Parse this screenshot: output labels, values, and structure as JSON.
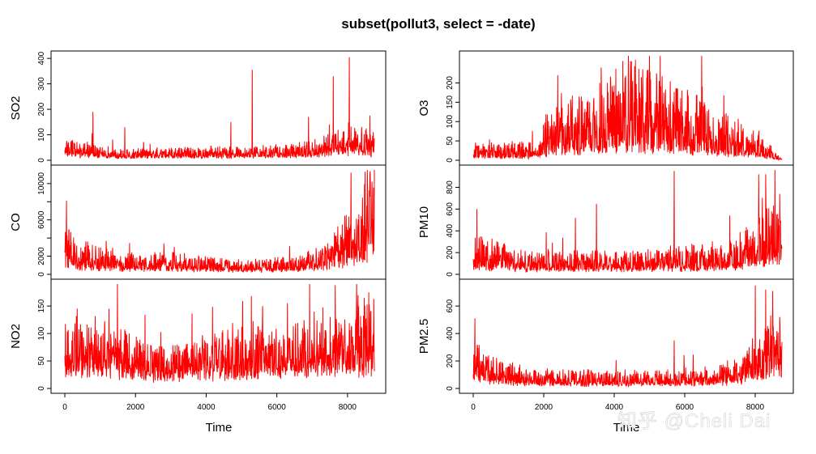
{
  "chart_data": {
    "type": "line",
    "title": "subset(pollut3, select = -date)",
    "xlabel": "Time",
    "xlim": [
      0,
      8760
    ],
    "x_ticks": [
      0,
      2000,
      4000,
      6000,
      8000
    ],
    "line_color": "#ff0000",
    "grid": false,
    "series": [
      {
        "name": "SO2",
        "column": 0,
        "ylim": [
          0,
          410
        ],
        "y_ticks": [
          0,
          100,
          200,
          300,
          400
        ],
        "y_ticks_hidden": [],
        "base": 15,
        "spread": 20,
        "trend": [
          [
            0,
            1.6
          ],
          [
            300,
            1.5
          ],
          [
            1500,
            0.9
          ],
          [
            3000,
            1.0
          ],
          [
            5000,
            1.1
          ],
          [
            6500,
            1.3
          ],
          [
            7200,
            1.8
          ],
          [
            7800,
            2.5
          ],
          [
            8200,
            3.0
          ],
          [
            8700,
            2.2
          ]
        ],
        "spikes": [
          [
            5300,
            355
          ],
          [
            8050,
            405
          ],
          [
            7600,
            330
          ],
          [
            6900,
            170
          ],
          [
            800,
            190
          ],
          [
            1700,
            130
          ],
          [
            4700,
            150
          ]
        ]
      },
      {
        "name": "O3",
        "column": 1,
        "ylim": [
          0,
          270
        ],
        "y_ticks": [
          0,
          50,
          100,
          150,
          200
        ],
        "y_ticks_hidden": [],
        "base": 10,
        "spread": 25,
        "trend": [
          [
            0,
            0.8
          ],
          [
            1800,
            0.9
          ],
          [
            2300,
            3.0
          ],
          [
            3300,
            3.2
          ],
          [
            4300,
            4.4
          ],
          [
            5300,
            4.0
          ],
          [
            6300,
            3.0
          ],
          [
            7300,
            2.0
          ],
          [
            8200,
            1.2
          ],
          [
            8760,
            0.05
          ]
        ],
        "spikes": [
          [
            4400,
            270
          ],
          [
            5000,
            270
          ],
          [
            4600,
            260
          ],
          [
            2400,
            220
          ],
          [
            6500,
            190
          ]
        ]
      },
      {
        "name": "CO",
        "column": 0,
        "ylim": [
          0,
          11500
        ],
        "y_ticks": [
          0,
          2000,
          6000,
          10000
        ],
        "y_ticks_hidden": [
          4000,
          8000
        ],
        "base": 600,
        "spread": 800,
        "trend": [
          [
            0,
            2.8
          ],
          [
            300,
            2.0
          ],
          [
            1500,
            1.1
          ],
          [
            3000,
            1.2
          ],
          [
            5000,
            0.8
          ],
          [
            6500,
            1.0
          ],
          [
            7400,
            1.6
          ],
          [
            7900,
            3.2
          ],
          [
            8400,
            5.0
          ],
          [
            8760,
            7.0
          ]
        ],
        "spikes": [
          [
            8100,
            11200
          ],
          [
            8500,
            11300
          ],
          [
            50,
            8100
          ],
          [
            8700,
            10200
          ],
          [
            2800,
            3400
          ],
          [
            3100,
            3000
          ]
        ]
      },
      {
        "name": "PM10",
        "column": 1,
        "ylim": [
          0,
          960
        ],
        "y_ticks": [
          0,
          200,
          400,
          600,
          800
        ],
        "y_ticks_hidden": [],
        "base": 50,
        "spread": 90,
        "trend": [
          [
            0,
            1.8
          ],
          [
            500,
            1.5
          ],
          [
            1500,
            1.0
          ],
          [
            3000,
            1.0
          ],
          [
            5000,
            1.1
          ],
          [
            6500,
            1.3
          ],
          [
            7500,
            1.6
          ],
          [
            8000,
            2.5
          ],
          [
            8500,
            3.2
          ],
          [
            8760,
            2.8
          ]
        ],
        "spikes": [
          [
            5700,
            950
          ],
          [
            8100,
            920
          ],
          [
            8300,
            920
          ],
          [
            8700,
            740
          ],
          [
            3500,
            650
          ],
          [
            100,
            600
          ],
          [
            2900,
            520
          ]
        ]
      },
      {
        "name": "NO2",
        "column": 0,
        "ylim": [
          0,
          190
        ],
        "y_ticks": [
          0,
          50,
          100,
          150
        ],
        "y_ticks_hidden": [],
        "base": 30,
        "spread": 35,
        "trend": [
          [
            0,
            1.4
          ],
          [
            1500,
            1.3
          ],
          [
            2500,
            0.9
          ],
          [
            3500,
            0.9
          ],
          [
            4500,
            1.2
          ],
          [
            6000,
            1.3
          ],
          [
            7500,
            1.6
          ],
          [
            8200,
            1.7
          ],
          [
            8760,
            1.9
          ]
        ],
        "spikes": [
          [
            7650,
            188
          ],
          [
            8300,
            170
          ],
          [
            8600,
            175
          ],
          [
            6300,
            155
          ],
          [
            5600,
            150
          ],
          [
            1250,
            145
          ]
        ]
      },
      {
        "name": "PM2.5",
        "column": 1,
        "ylim": [
          0,
          760
        ],
        "y_ticks": [
          0,
          200,
          400,
          600
        ],
        "y_ticks_hidden": [],
        "base": 40,
        "spread": 60,
        "trend": [
          [
            0,
            2.5
          ],
          [
            600,
            1.6
          ],
          [
            1500,
            1.0
          ],
          [
            3000,
            0.9
          ],
          [
            5000,
            0.9
          ],
          [
            6500,
            1.0
          ],
          [
            7500,
            1.4
          ],
          [
            8000,
            2.6
          ],
          [
            8500,
            3.5
          ],
          [
            8760,
            2.8
          ]
        ],
        "spikes": [
          [
            8000,
            750
          ],
          [
            8300,
            720
          ],
          [
            8500,
            710
          ],
          [
            5700,
            350
          ],
          [
            50,
            510
          ],
          [
            8700,
            520
          ]
        ]
      }
    ]
  },
  "watermark": "知乎 @Cheli Dai"
}
